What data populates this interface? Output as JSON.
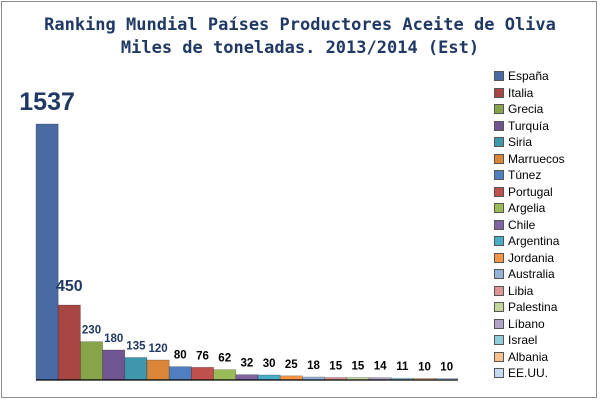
{
  "chart_data": {
    "type": "bar",
    "title": "Ranking Mundial Países Productores Aceite de Oliva",
    "subtitle": "Miles de toneladas. 2013/2014 (Est)",
    "categories": [
      "España",
      "Italia",
      "Grecia",
      "Turquía",
      "Siria",
      "Marruecos",
      "Túnez",
      "Portugal",
      "Argelia",
      "Chile",
      "Argentina",
      "Jordania",
      "Australia",
      "Libia",
      "Palestina",
      "Líbano",
      "Israel",
      "Albania",
      "EE.UU."
    ],
    "values": [
      1537,
      450,
      230,
      180,
      135,
      120,
      80,
      76,
      62,
      32,
      30,
      25,
      18,
      15,
      15,
      14,
      11,
      10,
      10
    ],
    "colors": [
      "#4a6aa5",
      "#a84643",
      "#87a44a",
      "#6f5591",
      "#3e97ad",
      "#da8537",
      "#4f7fbf",
      "#c0504d",
      "#9bbb59",
      "#8064a2",
      "#4bacc6",
      "#f79646",
      "#95b3d7",
      "#d99694",
      "#c3d69b",
      "#b3a2c7",
      "#93cddd",
      "#fac090",
      "#c5d9f1"
    ],
    "ylim": [
      0,
      1600
    ],
    "legend_position": "right",
    "grid": false
  }
}
